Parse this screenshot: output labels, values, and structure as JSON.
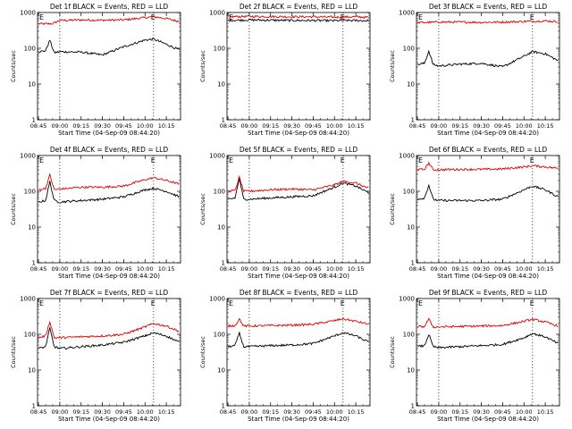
{
  "figure": {
    "ylabel": "Counts/sec",
    "xlabel": "Start Time (04-Sep-09 08:44:20)",
    "colors": {
      "events": "#000000",
      "lld": "#e00000",
      "axes": "#000000",
      "background": "#ffffff"
    }
  },
  "chart_data": [
    {
      "type": "line",
      "title": "Det 1f BLACK = Events, RED = LLD",
      "xlabel": "Start Time (04-Sep-09 08:44:20)",
      "ylabel": "Counts/sec",
      "yscale": "log",
      "ylim": [
        1,
        1000
      ],
      "xlim": [
        "08:44:20",
        "10:25"
      ],
      "x_ticks": [
        "08:45",
        "09:00",
        "09:15",
        "09:30",
        "09:45",
        "10:00",
        "10:15"
      ],
      "y_ticks": [
        "1",
        "10",
        "100",
        "1000"
      ],
      "vlines": [
        "09:00",
        "10:06"
      ],
      "corner_marks": [
        "E",
        "E"
      ],
      "series": [
        {
          "color": "#e00000",
          "x": [
            "08:45",
            "08:50",
            "08:55",
            "09:00",
            "09:15",
            "09:30",
            "09:45",
            "10:00",
            "10:06",
            "10:15",
            "10:24"
          ],
          "values": [
            480,
            480,
            490,
            600,
            620,
            610,
            620,
            720,
            760,
            680,
            560
          ]
        },
        {
          "color": "#000000",
          "x": [
            "08:45",
            "08:50",
            "08:53",
            "08:56",
            "09:00",
            "09:15",
            "09:30",
            "09:45",
            "10:00",
            "10:06",
            "10:15",
            "10:24"
          ],
          "values": [
            80,
            85,
            170,
            75,
            80,
            78,
            65,
            110,
            170,
            180,
            130,
            90
          ]
        }
      ]
    },
    {
      "type": "line",
      "title": "Det 2f BLACK = Events, RED = LLD",
      "xlabel": "Start Time (04-Sep-09 08:44:20)",
      "ylabel": "Counts/sec",
      "yscale": "log",
      "ylim": [
        1,
        1000
      ],
      "xlim": [
        "08:44:20",
        "10:25"
      ],
      "x_ticks": [
        "08:45",
        "09:00",
        "09:15",
        "09:30",
        "09:45",
        "10:00",
        "10:15"
      ],
      "y_ticks": [
        "1",
        "10",
        "100",
        "1000"
      ],
      "vlines": [
        "09:00",
        "10:06"
      ],
      "corner_marks": [
        "E",
        "E"
      ],
      "series": [
        {
          "color": "#e00000",
          "x": [
            "08:45",
            "09:00",
            "09:15",
            "09:30",
            "09:45",
            "10:00",
            "10:15",
            "10:24"
          ],
          "values": [
            760,
            780,
            770,
            760,
            760,
            740,
            760,
            730
          ]
        },
        {
          "color": "#000000",
          "x": [
            "08:45",
            "09:00",
            "09:15",
            "09:30",
            "09:45",
            "10:00",
            "10:15",
            "10:24"
          ],
          "values": [
            600,
            620,
            610,
            600,
            600,
            590,
            600,
            590
          ]
        }
      ]
    },
    {
      "type": "line",
      "title": "Det 3f BLACK = Events, RED = LLD",
      "xlabel": "Start Time (04-Sep-09 08:44:20)",
      "ylabel": "Counts/sec",
      "yscale": "log",
      "ylim": [
        1,
        1000
      ],
      "xlim": [
        "08:44:20",
        "10:25"
      ],
      "x_ticks": [
        "08:45",
        "09:00",
        "09:15",
        "09:30",
        "09:45",
        "10:00",
        "10:15"
      ],
      "y_ticks": [
        "1",
        "10",
        "100",
        "1000"
      ],
      "vlines": [
        "09:00",
        "10:06"
      ],
      "corner_marks": [
        "E",
        "E"
      ],
      "series": [
        {
          "color": "#e00000",
          "x": [
            "08:45",
            "09:00",
            "09:15",
            "09:30",
            "09:45",
            "10:00",
            "10:15",
            "10:24"
          ],
          "values": [
            520,
            540,
            540,
            530,
            540,
            560,
            580,
            560
          ]
        },
        {
          "color": "#000000",
          "x": [
            "08:45",
            "08:50",
            "08:53",
            "08:56",
            "09:00",
            "09:15",
            "09:30",
            "09:45",
            "10:00",
            "10:06",
            "10:15",
            "10:24"
          ],
          "values": [
            35,
            38,
            85,
            35,
            32,
            36,
            38,
            30,
            60,
            80,
            70,
            45
          ]
        }
      ]
    },
    {
      "type": "line",
      "title": "Det 4f BLACK = Events, RED = LLD",
      "xlabel": "Start Time (04-Sep-09 08:44:20)",
      "ylabel": "Counts/sec",
      "yscale": "log",
      "ylim": [
        1,
        1000
      ],
      "xlim": [
        "08:44:20",
        "10:25"
      ],
      "x_ticks": [
        "08:45",
        "09:00",
        "09:15",
        "09:30",
        "09:45",
        "10:00",
        "10:15"
      ],
      "y_ticks": [
        "1",
        "10",
        "100",
        "1000"
      ],
      "vlines": [
        "09:00",
        "10:06"
      ],
      "corner_marks": [
        "E",
        "E"
      ],
      "series": [
        {
          "color": "#e00000",
          "x": [
            "08:45",
            "08:50",
            "08:53",
            "08:56",
            "09:00",
            "09:15",
            "09:30",
            "09:45",
            "10:00",
            "10:06",
            "10:15",
            "10:24"
          ],
          "values": [
            110,
            120,
            290,
            110,
            115,
            130,
            130,
            140,
            210,
            240,
            200,
            160
          ]
        },
        {
          "color": "#000000",
          "x": [
            "08:45",
            "08:50",
            "08:53",
            "08:56",
            "09:00",
            "09:15",
            "09:30",
            "09:45",
            "10:00",
            "10:06",
            "10:15",
            "10:24"
          ],
          "values": [
            50,
            55,
            190,
            55,
            50,
            55,
            60,
            70,
            110,
            120,
            100,
            70
          ]
        }
      ]
    },
    {
      "type": "line",
      "title": "Det 5f BLACK = Events, RED = LLD",
      "xlabel": "Start Time (04-Sep-09 08:44:20)",
      "ylabel": "Counts/sec",
      "yscale": "log",
      "ylim": [
        1,
        1000
      ],
      "xlim": [
        "08:44:20",
        "10:25"
      ],
      "x_ticks": [
        "08:45",
        "09:00",
        "09:15",
        "09:30",
        "09:45",
        "10:00",
        "10:15"
      ],
      "y_ticks": [
        "1",
        "10",
        "100",
        "1000"
      ],
      "vlines": [
        "09:00",
        "10:06"
      ],
      "corner_marks": [
        "E",
        "E"
      ],
      "series": [
        {
          "color": "#e00000",
          "x": [
            "08:45",
            "08:50",
            "08:53",
            "08:56",
            "09:00",
            "09:15",
            "09:30",
            "09:45",
            "10:00",
            "10:06",
            "10:15",
            "10:24"
          ],
          "values": [
            100,
            105,
            250,
            100,
            100,
            110,
            115,
            110,
            150,
            190,
            170,
            120
          ]
        },
        {
          "color": "#000000",
          "x": [
            "08:45",
            "08:50",
            "08:53",
            "08:56",
            "09:00",
            "09:15",
            "09:30",
            "09:45",
            "10:00",
            "10:06",
            "10:15",
            "10:24"
          ],
          "values": [
            60,
            65,
            230,
            60,
            60,
            65,
            70,
            75,
            130,
            170,
            140,
            90
          ]
        }
      ]
    },
    {
      "type": "line",
      "title": "Det 6f BLACK = Events, RED = LLD",
      "xlabel": "Start Time (04-Sep-09 08:44:20)",
      "ylabel": "Counts/sec",
      "yscale": "log",
      "ylim": [
        1,
        1000
      ],
      "xlim": [
        "08:44:20",
        "10:25"
      ],
      "x_ticks": [
        "08:45",
        "09:00",
        "09:15",
        "09:30",
        "09:45",
        "10:00",
        "10:15"
      ],
      "y_ticks": [
        "1",
        "10",
        "100",
        "1000"
      ],
      "vlines": [
        "09:00",
        "10:06"
      ],
      "corner_marks": [
        "E",
        "E"
      ],
      "series": [
        {
          "color": "#e00000",
          "x": [
            "08:45",
            "08:50",
            "08:53",
            "08:56",
            "09:00",
            "09:15",
            "09:30",
            "09:45",
            "10:00",
            "10:06",
            "10:15",
            "10:24"
          ],
          "values": [
            400,
            410,
            620,
            400,
            400,
            410,
            410,
            420,
            480,
            520,
            480,
            440
          ]
        },
        {
          "color": "#000000",
          "x": [
            "08:45",
            "08:50",
            "08:53",
            "08:56",
            "09:00",
            "09:15",
            "09:30",
            "09:45",
            "10:00",
            "10:06",
            "10:15",
            "10:24"
          ],
          "values": [
            60,
            65,
            150,
            60,
            55,
            55,
            55,
            60,
            110,
            140,
            110,
            70
          ]
        }
      ]
    },
    {
      "type": "line",
      "title": "Det 7f BLACK = Events, RED = LLD",
      "xlabel": "Start Time (04-Sep-09 08:44:20)",
      "ylabel": "Counts/sec",
      "yscale": "log",
      "ylim": [
        1,
        1000
      ],
      "xlim": [
        "08:44:20",
        "10:25"
      ],
      "x_ticks": [
        "08:45",
        "09:00",
        "09:15",
        "09:30",
        "09:45",
        "10:00",
        "10:15"
      ],
      "y_ticks": [
        "1",
        "10",
        "100",
        "1000"
      ],
      "vlines": [
        "09:00",
        "10:06"
      ],
      "corner_marks": [
        "E",
        "E"
      ],
      "series": [
        {
          "color": "#e00000",
          "x": [
            "08:45",
            "08:50",
            "08:53",
            "08:56",
            "09:00",
            "09:15",
            "09:30",
            "09:45",
            "10:00",
            "10:06",
            "10:15",
            "10:24"
          ],
          "values": [
            80,
            90,
            230,
            80,
            80,
            85,
            90,
            100,
            160,
            200,
            170,
            120
          ]
        },
        {
          "color": "#000000",
          "x": [
            "08:45",
            "08:50",
            "08:53",
            "08:56",
            "09:00",
            "09:15",
            "09:30",
            "09:45",
            "10:00",
            "10:06",
            "10:15",
            "10:24"
          ],
          "values": [
            40,
            45,
            150,
            45,
            40,
            45,
            50,
            60,
            90,
            110,
            90,
            60
          ]
        }
      ]
    },
    {
      "type": "line",
      "title": "Det 8f BLACK = Events, RED = LLD",
      "xlabel": "Start Time (04-Sep-09 08:44:20)",
      "ylabel": "Counts/sec",
      "yscale": "log",
      "ylim": [
        1,
        1000
      ],
      "xlim": [
        "08:44:20",
        "10:25"
      ],
      "x_ticks": [
        "08:45",
        "09:00",
        "09:15",
        "09:30",
        "09:45",
        "10:00",
        "10:15"
      ],
      "y_ticks": [
        "1",
        "10",
        "100",
        "1000"
      ],
      "vlines": [
        "09:00",
        "10:06"
      ],
      "corner_marks": [
        "E",
        "E"
      ],
      "series": [
        {
          "color": "#e00000",
          "x": [
            "08:45",
            "08:50",
            "08:53",
            "08:56",
            "09:00",
            "09:15",
            "09:30",
            "09:45",
            "10:00",
            "10:06",
            "10:15",
            "10:24"
          ],
          "values": [
            170,
            175,
            270,
            170,
            170,
            175,
            180,
            190,
            240,
            270,
            230,
            190
          ]
        },
        {
          "color": "#000000",
          "x": [
            "08:45",
            "08:50",
            "08:53",
            "08:56",
            "09:00",
            "09:15",
            "09:30",
            "09:45",
            "10:00",
            "10:06",
            "10:15",
            "10:24"
          ],
          "values": [
            45,
            48,
            110,
            45,
            45,
            48,
            50,
            55,
            90,
            110,
            90,
            60
          ]
        }
      ]
    },
    {
      "type": "line",
      "title": "Det 9f BLACK = Events, RED = LLD",
      "xlabel": "Start Time (04-Sep-09 08:44:20)",
      "ylabel": "Counts/sec",
      "yscale": "log",
      "ylim": [
        1,
        1000
      ],
      "xlim": [
        "08:44:20",
        "10:25"
      ],
      "x_ticks": [
        "08:45",
        "09:00",
        "09:15",
        "09:30",
        "09:45",
        "10:00",
        "10:15"
      ],
      "y_ticks": [
        "1",
        "10",
        "100",
        "1000"
      ],
      "vlines": [
        "09:00",
        "10:06"
      ],
      "corner_marks": [
        "E",
        "E"
      ],
      "series": [
        {
          "color": "#e00000",
          "x": [
            "08:45",
            "08:50",
            "08:53",
            "08:56",
            "09:00",
            "09:15",
            "09:30",
            "09:45",
            "10:00",
            "10:06",
            "10:15",
            "10:24"
          ],
          "values": [
            160,
            165,
            270,
            160,
            160,
            165,
            170,
            175,
            230,
            260,
            220,
            170
          ]
        },
        {
          "color": "#000000",
          "x": [
            "08:45",
            "08:50",
            "08:53",
            "08:56",
            "09:00",
            "09:15",
            "09:30",
            "09:45",
            "10:00",
            "10:06",
            "10:15",
            "10:24"
          ],
          "values": [
            45,
            48,
            100,
            45,
            42,
            45,
            48,
            52,
            80,
            105,
            85,
            55
          ]
        }
      ]
    }
  ]
}
